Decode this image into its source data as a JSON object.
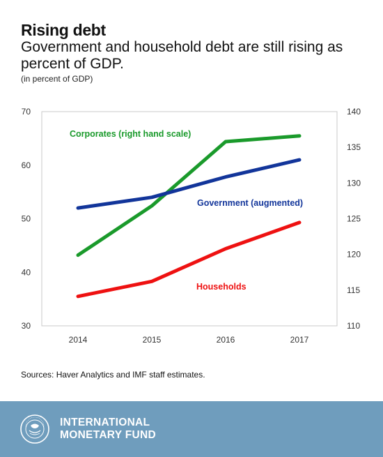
{
  "header": {
    "title": "Rising debt",
    "subtitle": "Government and household debt are still rising as percent of GDP.",
    "units": "(in percent of GDP)"
  },
  "footer": {
    "source": "Sources: Haver Analytics and IMF staff estimates.",
    "org_line1": "INTERNATIONAL",
    "org_line2": "MONETARY FUND",
    "background_color": "#6f9dbd"
  },
  "chart_data": {
    "type": "line",
    "categories": [
      "2014",
      "2015",
      "2016",
      "2017"
    ],
    "y_left": {
      "ylim": [
        30,
        70
      ],
      "ticks": [
        "30",
        "40",
        "50",
        "60",
        "70"
      ]
    },
    "y_right": {
      "ylim": [
        110,
        140
      ],
      "ticks": [
        "110",
        "115",
        "120",
        "125",
        "130",
        "135",
        "140"
      ]
    },
    "grid": false,
    "series": [
      {
        "name": "Corporates (right hand scale)",
        "axis": "right",
        "color": "#1a9a2b",
        "values": [
          119.9,
          126.8,
          135.8,
          136.6
        ]
      },
      {
        "name": "Government (augmented)",
        "axis": "left",
        "color": "#12359a",
        "values": [
          52.0,
          54.0,
          57.8,
          61.0
        ]
      },
      {
        "name": "Households",
        "axis": "left",
        "color": "#ee1111",
        "values": [
          35.5,
          38.3,
          44.4,
          49.3
        ]
      }
    ]
  }
}
